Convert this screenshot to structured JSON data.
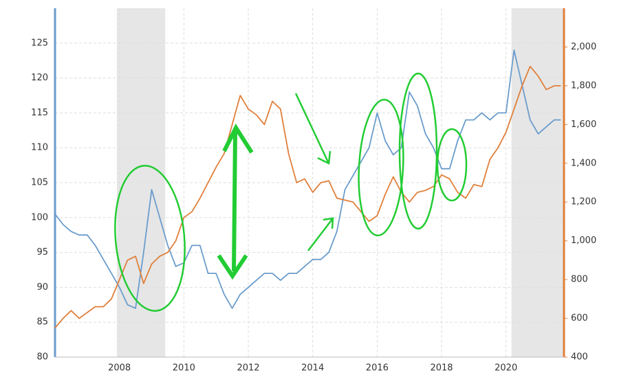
{
  "chart_data": {
    "type": "line",
    "x": [
      2006,
      2006.25,
      2006.5,
      2006.75,
      2007,
      2007.25,
      2007.5,
      2007.75,
      2008,
      2008.25,
      2008.5,
      2008.75,
      2009,
      2009.25,
      2009.5,
      2009.75,
      2010,
      2010.25,
      2010.5,
      2010.75,
      2011,
      2011.25,
      2011.5,
      2011.75,
      2012,
      2012.25,
      2012.5,
      2012.75,
      2013,
      2013.25,
      2013.5,
      2013.75,
      2014,
      2014.25,
      2014.5,
      2014.75,
      2015,
      2015.25,
      2015.5,
      2015.75,
      2016,
      2016.25,
      2016.5,
      2016.75,
      2017,
      2017.25,
      2017.5,
      2017.75,
      2018,
      2018.25,
      2018.5,
      2018.75,
      2019,
      2019.25,
      2019.5,
      2019.75,
      2020,
      2020.25,
      2020.5,
      2020.75,
      2021,
      2021.25,
      2021.5,
      2021.7
    ],
    "series": [
      {
        "color": "#6a9ccc",
        "values": [
          100.5,
          99,
          98,
          97.5,
          97.5,
          96,
          94,
          92,
          90,
          87.5,
          87,
          95,
          104,
          100,
          96,
          93,
          93.5,
          96,
          96,
          92,
          92,
          89,
          87,
          89,
          90,
          91,
          92,
          92,
          91,
          92,
          92,
          93,
          94,
          94,
          95,
          98,
          104,
          106,
          108,
          110,
          115,
          111,
          109,
          110,
          118,
          116,
          112,
          110,
          107,
          107,
          111,
          114,
          114,
          115,
          114,
          115,
          115,
          124,
          119,
          114,
          112,
          113,
          114,
          114
        ]
      },
      {
        "color": "#e07f3a",
        "axis": "y2",
        "values": [
          550,
          600,
          640,
          600,
          630,
          660,
          660,
          700,
          800,
          900,
          920,
          780,
          880,
          920,
          940,
          1000,
          1120,
          1150,
          1220,
          1300,
          1380,
          1450,
          1600,
          1750,
          1680,
          1650,
          1600,
          1720,
          1680,
          1450,
          1300,
          1320,
          1250,
          1300,
          1310,
          1220,
          1210,
          1200,
          1150,
          1100,
          1130,
          1240,
          1330,
          1250,
          1200,
          1250,
          1260,
          1280,
          1340,
          1320,
          1250,
          1220,
          1290,
          1280,
          1420,
          1480,
          1560,
          1680,
          1800,
          1900,
          1850,
          1780,
          1800,
          1800
        ]
      }
    ],
    "xlim": [
      2006,
      2021.8
    ],
    "xticks": [
      2008,
      2010,
      2012,
      2014,
      2016,
      2018,
      2020
    ],
    "ylim": [
      80,
      130
    ],
    "yticks": [
      80,
      85,
      90,
      95,
      100,
      105,
      110,
      115,
      120,
      125
    ],
    "y2lim": [
      400,
      2200
    ],
    "y2ticks": [
      400,
      600,
      800,
      {
        "value": 1000,
        "label": "1,000"
      },
      {
        "value": 1200,
        "label": "1,200"
      },
      {
        "value": 1400,
        "label": "1,400"
      },
      {
        "value": 1600,
        "label": "1,600"
      },
      {
        "value": 1800,
        "label": "1,800"
      },
      {
        "value": 2000,
        "label": "2,000"
      }
    ],
    "shaded_ranges": [
      [
        2007.92,
        2009.42
      ],
      [
        2020.17,
        2021.8
      ]
    ],
    "grid": true
  }
}
